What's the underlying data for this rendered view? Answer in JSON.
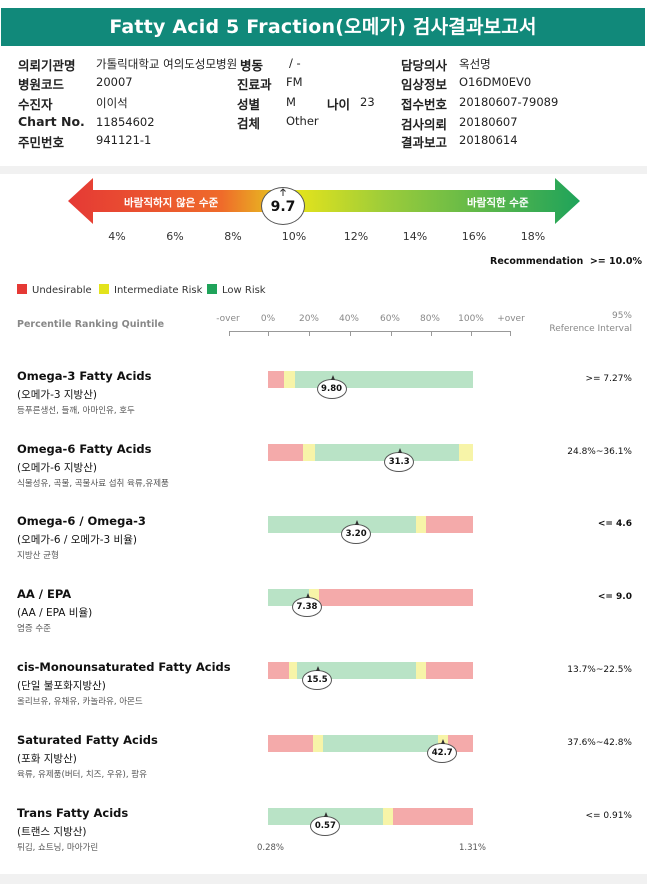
{
  "title": "Fatty Acid 5 Fraction(오메가) 검사결과보고서",
  "info": [
    {
      "label": "의뢰기관명",
      "value": "가톨릭대학교 여의도성모병원"
    },
    {
      "label": "병원코드",
      "value": "20007"
    },
    {
      "label": "수진자",
      "value": "이이석"
    },
    {
      "label": "Chart No.",
      "value": "11854602"
    },
    {
      "label": "주민번호",
      "value": "941121-1"
    },
    {
      "label": "병동",
      "value": "/ -"
    },
    {
      "label": "진료과",
      "value": "FM"
    },
    {
      "label": "성별",
      "value": "M"
    },
    {
      "label": "나이",
      "value": "23"
    },
    {
      "label": "검체",
      "value": "Other"
    },
    {
      "label": "담당의사",
      "value": "옥선명"
    },
    {
      "label": "임상정보",
      "value": "O16DM0EV0"
    },
    {
      "label": "접수번호",
      "value": "20180607-79089"
    },
    {
      "label": "검사의뢰",
      "value": "20180607"
    },
    {
      "label": "결과보고",
      "value": "20180614"
    }
  ],
  "gauge": {
    "value": "9.7",
    "left_label": "바람직하지 않은 수준",
    "right_label": "바람직한 수준",
    "ticks": [
      "4%",
      "6%",
      "8%",
      "10%",
      "12%",
      "14%",
      "16%",
      "18%"
    ],
    "colors": {
      "red": "#e53935",
      "yellow": "#e3e31c",
      "green": "#1fa35a"
    }
  },
  "recommendation": "Recommendation  >= 10.0%",
  "legend": [
    {
      "label": "Undesirable",
      "color": "#e53935"
    },
    {
      "label": "Intermediate Risk",
      "color": "#e3e31c"
    },
    {
      "label": "Low Risk",
      "color": "#1fa35a"
    }
  ],
  "percentile_title": "Percentile Ranking Quintile",
  "scale_labels": [
    "-over",
    "0%",
    "20%",
    "40%",
    "60%",
    "80%",
    "100%",
    "+over"
  ],
  "ref_title_1": "95%",
  "ref_title_2": "Reference Interval",
  "bar_colors": {
    "red": "#f4aaaa",
    "yellow": "#f7f4a8",
    "green": "#b9e3c6"
  },
  "rows": [
    {
      "name": "Omega-3 Fatty Acids",
      "kor": "(오메가-3 지방산)",
      "desc": "등푸른생선, 들깨, 아마인유, 호두",
      "value": "9.80",
      "ref": ">= 7.27%",
      "ref_bold": false,
      "segments": [
        [
          "red",
          0,
          0.08
        ],
        [
          "yellow",
          0.08,
          0.13
        ],
        [
          "green",
          0.13,
          1.0
        ]
      ],
      "marker": 0.31
    },
    {
      "name": "Omega-6 Fatty Acids",
      "kor": "(오메가-6 지방산)",
      "desc": "식물성유, 곡물, 곡물사료 섭취 육류,유제품",
      "value": "31.3",
      "ref": "24.8%~36.1%",
      "ref_bold": false,
      "segments": [
        [
          "red",
          0,
          0.17
        ],
        [
          "yellow",
          0.17,
          0.23
        ],
        [
          "green",
          0.23,
          0.93
        ],
        [
          "yellow",
          0.93,
          1.0
        ]
      ],
      "marker": 0.64
    },
    {
      "name": "Omega-6 / Omega-3",
      "kor": "(오메가-6 / 오메가-3 비율)",
      "desc": "지방산 균형",
      "value": "3.20",
      "ref": "<= 4.6",
      "ref_bold": true,
      "segments": [
        [
          "green",
          0,
          0.72
        ],
        [
          "yellow",
          0.72,
          0.77
        ],
        [
          "red",
          0.77,
          1.0
        ]
      ],
      "marker": 0.43
    },
    {
      "name": "AA / EPA",
      "kor": "(AA / EPA 비율)",
      "desc": "염증 수준",
      "value": "7.38",
      "ref": "<= 9.0",
      "ref_bold": true,
      "segments": [
        [
          "green",
          0,
          0.2
        ],
        [
          "yellow",
          0.2,
          0.25
        ],
        [
          "red",
          0.25,
          1.0
        ]
      ],
      "marker": 0.19
    },
    {
      "name": "cis-Monounsaturated Fatty Acids",
      "kor": "(단일 불포화지방산)",
      "desc": "올리브유, 유채유, 카놀라유, 아몬드",
      "value": "15.5",
      "ref": "13.7%~22.5%",
      "ref_bold": false,
      "segments": [
        [
          "red",
          0,
          0.1
        ],
        [
          "yellow",
          0.1,
          0.14
        ],
        [
          "green",
          0.14,
          0.72
        ],
        [
          "yellow",
          0.72,
          0.77
        ],
        [
          "red",
          0.77,
          1.0
        ]
      ],
      "marker": 0.24
    },
    {
      "name": "Saturated Fatty Acids",
      "kor": "(포화 지방산)",
      "desc": "육류, 유제품(버터, 치즈, 우유), 팜유",
      "value": "42.7",
      "ref": "37.6%~42.8%",
      "ref_bold": false,
      "segments": [
        [
          "red",
          0,
          0.22
        ],
        [
          "yellow",
          0.22,
          0.27
        ],
        [
          "green",
          0.27,
          0.83
        ],
        [
          "yellow",
          0.83,
          0.88
        ],
        [
          "red",
          0.88,
          1.0
        ]
      ],
      "marker": 0.85
    },
    {
      "name": "Trans Fatty Acids",
      "kor": "(트랜스 지방산)",
      "desc": "튀김, 쇼트닝, 마아가린",
      "value": "0.57",
      "ref": "<= 0.91%",
      "ref_bold": false,
      "segments": [
        [
          "green",
          0,
          0.56
        ],
        [
          "yellow",
          0.56,
          0.61
        ],
        [
          "red",
          0.61,
          1.0
        ]
      ],
      "marker": 0.28
    }
  ],
  "trans_range": {
    "low": "0.28%",
    "high": "1.31%"
  }
}
